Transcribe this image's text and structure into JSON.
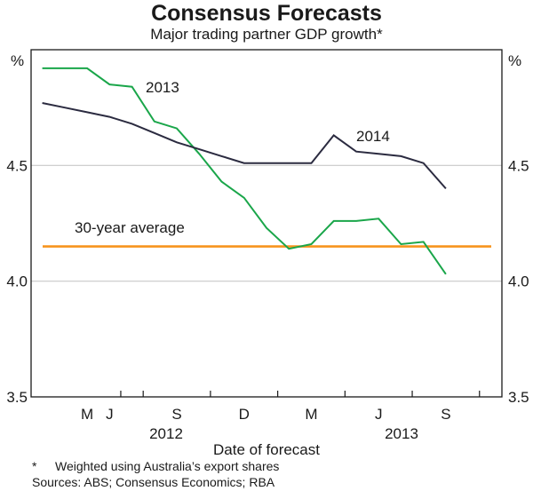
{
  "title": "Consensus Forecasts",
  "subtitle": "Major trading partner GDP growth*",
  "footnotes": {
    "asterisk": "*",
    "note": "Weighted using Australia’s export shares",
    "sources": "Sources: ABS; Consensus Economics; RBA"
  },
  "chart_data": {
    "type": "line",
    "title": "Consensus Forecasts",
    "subtitle": "Major trading partner GDP growth*",
    "xlabel": "Date of forecast",
    "ylabel": "%",
    "ylabel_right": "%",
    "ylim": [
      3.5,
      5.0
    ],
    "yticks": [
      3.5,
      4.0,
      4.5
    ],
    "ytick_labels": [
      "3.5",
      "4.0",
      "4.5"
    ],
    "grid": true,
    "x_range_months": [
      "2012-02",
      "2013-10"
    ],
    "xticks": [
      {
        "label": "M",
        "month": "2012-05"
      },
      {
        "label": "J",
        "month": "2012-06"
      },
      {
        "label": "S",
        "month": "2012-09"
      },
      {
        "label": "D",
        "month": "2012-12"
      },
      {
        "label": "M",
        "month": "2013-03"
      },
      {
        "label": "J",
        "month": "2013-06"
      },
      {
        "label": "S",
        "month": "2013-09"
      }
    ],
    "xtick_quarter_labels": [
      "M",
      "J",
      "S",
      "D",
      "M",
      "J",
      "S"
    ],
    "year_labels": [
      {
        "label": "2012"
      },
      {
        "label": "2013"
      }
    ],
    "x": [
      "2012-02",
      "2012-03",
      "2012-04",
      "2012-05",
      "2012-06",
      "2012-07",
      "2012-08",
      "2012-09",
      "2012-10",
      "2012-11",
      "2012-12",
      "2013-01",
      "2013-02",
      "2013-03",
      "2013-04",
      "2013-05",
      "2013-06",
      "2013-07",
      "2013-08"
    ],
    "series": [
      {
        "name": "2013",
        "color": "#1aa64a",
        "values": [
          4.92,
          4.92,
          4.92,
          4.85,
          4.84,
          4.69,
          4.66,
          4.55,
          4.43,
          4.36,
          4.23,
          4.14,
          4.16,
          4.26,
          4.26,
          4.27,
          4.16,
          4.17,
          4.03
        ]
      },
      {
        "name": "2014",
        "color": "#2b2b40",
        "values": [
          4.77,
          4.75,
          4.73,
          4.71,
          4.68,
          4.64,
          4.6,
          4.57,
          4.54,
          4.51,
          4.51,
          4.51,
          4.51,
          4.63,
          4.56,
          4.55,
          4.54,
          4.51,
          4.4
        ]
      }
    ],
    "reference_lines": [
      {
        "name": "30-year average",
        "value": 4.15,
        "color": "#f7941d"
      }
    ],
    "annotations": [
      "2013",
      "2014",
      "30-year average"
    ]
  }
}
